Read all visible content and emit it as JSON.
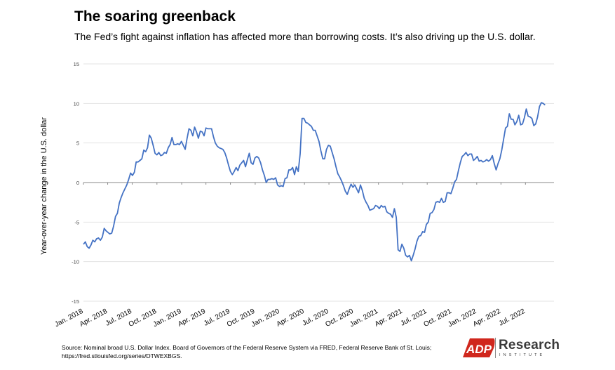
{
  "header": {
    "title": "The soaring greenback",
    "subtitle": "The Fed’s fight against inflation has affected more than borrowing costs. It’s also driving up the U.S. dollar."
  },
  "footer": {
    "source_line1": "Source:  Nominal broad U.S. Dollar Index. Board of Governors of the Federal Reserve System     via FRED, Federal Reserve Bank of St. Louis;",
    "source_line2": "https://fred.stlouisfed.org/series/DTWEXBGS.",
    "logo_icon": "adp-logo-icon",
    "logo_text": "Research",
    "logo_subtext": "INSTITUTE",
    "logo_color": "#d0271d"
  },
  "chart_data": {
    "type": "line",
    "ylabel": "Year-over-year change in the U.S. dollar",
    "xlabel": "",
    "ylim": [
      -15,
      15
    ],
    "yticks": [
      -15,
      -10,
      -5,
      0,
      5,
      10,
      15
    ],
    "xlim": [
      "2018-01-01",
      "2022-10-15"
    ],
    "xticks": [
      {
        "date": "2018-01-01",
        "label": "Jan. 2018"
      },
      {
        "date": "2018-04-01",
        "label": "Apr. 2018"
      },
      {
        "date": "2018-07-01",
        "label": "Jul. 2018"
      },
      {
        "date": "2018-10-01",
        "label": "Oct. 2018"
      },
      {
        "date": "2019-01-01",
        "label": "Jan. 2019"
      },
      {
        "date": "2019-04-01",
        "label": "Apr. 2019"
      },
      {
        "date": "2019-07-01",
        "label": "Jul. 2019"
      },
      {
        "date": "2019-10-01",
        "label": "Oct. 2019"
      },
      {
        "date": "2020-01-01",
        "label": "Jan. 2020"
      },
      {
        "date": "2020-04-01",
        "label": "Apr. 2020"
      },
      {
        "date": "2020-07-01",
        "label": "Jul. 2020"
      },
      {
        "date": "2020-10-01",
        "label": "Oct. 2020"
      },
      {
        "date": "2021-01-01",
        "label": "Jan. 2021"
      },
      {
        "date": "2021-04-01",
        "label": "Apr. 2021"
      },
      {
        "date": "2021-07-01",
        "label": "Jul. 2021"
      },
      {
        "date": "2021-10-01",
        "label": "Oct. 2021"
      },
      {
        "date": "2022-01-01",
        "label": "Jan. 2022"
      },
      {
        "date": "2022-04-01",
        "label": "Apr. 2022"
      },
      {
        "date": "2022-07-01",
        "label": "Jul. 2022"
      }
    ],
    "grid": true,
    "line_color": "#4472c4",
    "series": [
      {
        "points": [
          [
            "2018-01-01",
            -7.8
          ],
          [
            "2018-01-08",
            -7.5
          ],
          [
            "2018-01-15",
            -8.1
          ],
          [
            "2018-01-22",
            -8.3
          ],
          [
            "2018-01-29",
            -7.9
          ],
          [
            "2018-02-05",
            -7.3
          ],
          [
            "2018-02-12",
            -7.5
          ],
          [
            "2018-02-19",
            -7.1
          ],
          [
            "2018-02-26",
            -7.0
          ],
          [
            "2018-03-05",
            -7.3
          ],
          [
            "2018-03-12",
            -6.9
          ],
          [
            "2018-03-19",
            -5.8
          ],
          [
            "2018-03-26",
            -6.1
          ],
          [
            "2018-04-02",
            -6.3
          ],
          [
            "2018-04-09",
            -6.5
          ],
          [
            "2018-04-16",
            -6.4
          ],
          [
            "2018-04-23",
            -5.5
          ],
          [
            "2018-04-30",
            -4.3
          ],
          [
            "2018-05-07",
            -3.9
          ],
          [
            "2018-05-14",
            -2.6
          ],
          [
            "2018-05-21",
            -1.9
          ],
          [
            "2018-05-28",
            -1.3
          ],
          [
            "2018-06-04",
            -0.8
          ],
          [
            "2018-06-11",
            -0.3
          ],
          [
            "2018-06-18",
            0.4
          ],
          [
            "2018-06-25",
            1.2
          ],
          [
            "2018-07-02",
            0.9
          ],
          [
            "2018-07-09",
            1.3
          ],
          [
            "2018-07-16",
            2.6
          ],
          [
            "2018-07-23",
            2.6
          ],
          [
            "2018-07-30",
            2.8
          ],
          [
            "2018-08-06",
            3.0
          ],
          [
            "2018-08-13",
            4.1
          ],
          [
            "2018-08-20",
            3.9
          ],
          [
            "2018-08-27",
            4.4
          ],
          [
            "2018-09-03",
            6.0
          ],
          [
            "2018-09-10",
            5.6
          ],
          [
            "2018-09-17",
            4.7
          ],
          [
            "2018-09-24",
            3.7
          ],
          [
            "2018-10-01",
            3.5
          ],
          [
            "2018-10-08",
            3.8
          ],
          [
            "2018-10-15",
            3.4
          ],
          [
            "2018-10-22",
            3.5
          ],
          [
            "2018-10-29",
            3.8
          ],
          [
            "2018-11-05",
            3.7
          ],
          [
            "2018-11-12",
            4.4
          ],
          [
            "2018-11-19",
            4.8
          ],
          [
            "2018-11-26",
            5.7
          ],
          [
            "2018-12-03",
            4.8
          ],
          [
            "2018-12-10",
            4.8
          ],
          [
            "2018-12-17",
            4.9
          ],
          [
            "2018-12-24",
            4.8
          ],
          [
            "2018-12-31",
            5.2
          ],
          [
            "2019-01-07",
            4.7
          ],
          [
            "2019-01-14",
            4.2
          ],
          [
            "2019-01-21",
            5.6
          ],
          [
            "2019-01-28",
            6.8
          ],
          [
            "2019-02-04",
            6.6
          ],
          [
            "2019-02-11",
            5.9
          ],
          [
            "2019-02-18",
            7.0
          ],
          [
            "2019-02-25",
            6.4
          ],
          [
            "2019-03-04",
            5.6
          ],
          [
            "2019-03-11",
            6.5
          ],
          [
            "2019-03-18",
            6.4
          ],
          [
            "2019-03-25",
            5.9
          ],
          [
            "2019-04-01",
            6.9
          ],
          [
            "2019-04-08",
            6.8
          ],
          [
            "2019-04-15",
            6.8
          ],
          [
            "2019-04-22",
            6.8
          ],
          [
            "2019-04-29",
            5.8
          ],
          [
            "2019-05-06",
            5.0
          ],
          [
            "2019-05-13",
            4.6
          ],
          [
            "2019-05-20",
            4.4
          ],
          [
            "2019-05-27",
            4.3
          ],
          [
            "2019-06-03",
            4.2
          ],
          [
            "2019-06-10",
            3.8
          ],
          [
            "2019-06-17",
            3.1
          ],
          [
            "2019-06-24",
            2.2
          ],
          [
            "2019-07-01",
            1.4
          ],
          [
            "2019-07-08",
            1.0
          ],
          [
            "2019-07-15",
            1.4
          ],
          [
            "2019-07-22",
            1.9
          ],
          [
            "2019-07-29",
            1.5
          ],
          [
            "2019-08-05",
            2.2
          ],
          [
            "2019-08-12",
            2.5
          ],
          [
            "2019-08-19",
            2.8
          ],
          [
            "2019-08-26",
            2.0
          ],
          [
            "2019-09-02",
            2.9
          ],
          [
            "2019-09-09",
            3.7
          ],
          [
            "2019-09-16",
            2.5
          ],
          [
            "2019-09-23",
            2.3
          ],
          [
            "2019-09-30",
            3.1
          ],
          [
            "2019-10-07",
            3.3
          ],
          [
            "2019-10-14",
            3.1
          ],
          [
            "2019-10-21",
            2.5
          ],
          [
            "2019-10-28",
            1.6
          ],
          [
            "2019-11-04",
            0.9
          ],
          [
            "2019-11-11",
            0.0
          ],
          [
            "2019-11-18",
            0.4
          ],
          [
            "2019-11-25",
            0.4
          ],
          [
            "2019-12-02",
            0.5
          ],
          [
            "2019-12-09",
            0.4
          ],
          [
            "2019-12-16",
            0.6
          ],
          [
            "2019-12-23",
            -0.3
          ],
          [
            "2019-12-30",
            -0.5
          ],
          [
            "2020-01-06",
            -0.4
          ],
          [
            "2020-01-13",
            -0.5
          ],
          [
            "2020-01-20",
            0.5
          ],
          [
            "2020-01-27",
            0.6
          ],
          [
            "2020-02-03",
            1.6
          ],
          [
            "2020-02-10",
            1.6
          ],
          [
            "2020-02-17",
            1.9
          ],
          [
            "2020-02-24",
            1.0
          ],
          [
            "2020-03-02",
            2.0
          ],
          [
            "2020-03-09",
            1.4
          ],
          [
            "2020-03-16",
            3.6
          ],
          [
            "2020-03-23",
            8.1
          ],
          [
            "2020-03-30",
            8.1
          ],
          [
            "2020-04-06",
            7.6
          ],
          [
            "2020-04-13",
            7.5
          ],
          [
            "2020-04-20",
            7.3
          ],
          [
            "2020-04-27",
            7.1
          ],
          [
            "2020-05-04",
            6.6
          ],
          [
            "2020-05-11",
            6.6
          ],
          [
            "2020-05-18",
            5.9
          ],
          [
            "2020-05-25",
            5.2
          ],
          [
            "2020-06-01",
            4.0
          ],
          [
            "2020-06-08",
            3.0
          ],
          [
            "2020-06-15",
            3.0
          ],
          [
            "2020-06-22",
            4.2
          ],
          [
            "2020-06-29",
            4.7
          ],
          [
            "2020-07-06",
            4.6
          ],
          [
            "2020-07-13",
            3.8
          ],
          [
            "2020-07-20",
            3.0
          ],
          [
            "2020-07-27",
            2.0
          ],
          [
            "2020-08-03",
            1.1
          ],
          [
            "2020-08-10",
            0.7
          ],
          [
            "2020-08-17",
            0.2
          ],
          [
            "2020-08-24",
            -0.4
          ],
          [
            "2020-08-31",
            -1.1
          ],
          [
            "2020-09-07",
            -1.5
          ],
          [
            "2020-09-14",
            -0.8
          ],
          [
            "2020-09-21",
            -0.2
          ],
          [
            "2020-09-28",
            -0.6
          ],
          [
            "2020-10-05",
            -0.3
          ],
          [
            "2020-10-12",
            -0.8
          ],
          [
            "2020-10-19",
            -1.3
          ],
          [
            "2020-10-26",
            -0.3
          ],
          [
            "2020-11-02",
            -1.0
          ],
          [
            "2020-11-09",
            -2.0
          ],
          [
            "2020-11-16",
            -2.5
          ],
          [
            "2020-11-23",
            -2.9
          ],
          [
            "2020-11-30",
            -3.5
          ],
          [
            "2020-12-07",
            -3.4
          ],
          [
            "2020-12-14",
            -3.3
          ],
          [
            "2020-12-21",
            -2.9
          ],
          [
            "2020-12-28",
            -3.0
          ],
          [
            "2021-01-04",
            -3.3
          ],
          [
            "2021-01-11",
            -2.9
          ],
          [
            "2021-01-18",
            -3.1
          ],
          [
            "2021-01-25",
            -3.0
          ],
          [
            "2021-02-01",
            -3.7
          ],
          [
            "2021-02-08",
            -3.9
          ],
          [
            "2021-02-15",
            -4.0
          ],
          [
            "2021-02-22",
            -4.4
          ],
          [
            "2021-03-01",
            -3.3
          ],
          [
            "2021-03-08",
            -4.4
          ],
          [
            "2021-03-15",
            -8.5
          ],
          [
            "2021-03-22",
            -8.7
          ],
          [
            "2021-03-29",
            -7.8
          ],
          [
            "2021-04-05",
            -8.3
          ],
          [
            "2021-04-12",
            -9.2
          ],
          [
            "2021-04-19",
            -9.4
          ],
          [
            "2021-04-26",
            -9.2
          ],
          [
            "2021-05-03",
            -9.9
          ],
          [
            "2021-05-10",
            -9.2
          ],
          [
            "2021-05-17",
            -8.4
          ],
          [
            "2021-05-24",
            -7.4
          ],
          [
            "2021-05-31",
            -6.8
          ],
          [
            "2021-06-07",
            -6.7
          ],
          [
            "2021-06-14",
            -6.2
          ],
          [
            "2021-06-21",
            -6.3
          ],
          [
            "2021-06-28",
            -5.3
          ],
          [
            "2021-07-05",
            -5.0
          ],
          [
            "2021-07-12",
            -3.9
          ],
          [
            "2021-07-19",
            -3.8
          ],
          [
            "2021-07-26",
            -3.4
          ],
          [
            "2021-08-02",
            -2.5
          ],
          [
            "2021-08-09",
            -2.4
          ],
          [
            "2021-08-16",
            -2.5
          ],
          [
            "2021-08-23",
            -2.0
          ],
          [
            "2021-08-30",
            -2.5
          ],
          [
            "2021-09-06",
            -2.4
          ],
          [
            "2021-09-13",
            -1.3
          ],
          [
            "2021-09-20",
            -1.3
          ],
          [
            "2021-09-27",
            -1.4
          ],
          [
            "2021-10-04",
            -0.7
          ],
          [
            "2021-10-11",
            0.1
          ],
          [
            "2021-10-18",
            0.4
          ],
          [
            "2021-10-25",
            1.5
          ],
          [
            "2021-11-01",
            2.5
          ],
          [
            "2021-11-08",
            3.3
          ],
          [
            "2021-11-15",
            3.5
          ],
          [
            "2021-11-22",
            3.8
          ],
          [
            "2021-11-29",
            3.4
          ],
          [
            "2021-12-06",
            3.6
          ],
          [
            "2021-12-13",
            3.6
          ],
          [
            "2021-12-20",
            2.8
          ],
          [
            "2021-12-27",
            3.0
          ],
          [
            "2022-01-03",
            3.3
          ],
          [
            "2022-01-10",
            2.7
          ],
          [
            "2022-01-17",
            2.8
          ],
          [
            "2022-01-24",
            2.6
          ],
          [
            "2022-01-31",
            2.7
          ],
          [
            "2022-02-07",
            2.9
          ],
          [
            "2022-02-14",
            2.7
          ],
          [
            "2022-02-21",
            2.9
          ],
          [
            "2022-02-28",
            3.4
          ],
          [
            "2022-03-07",
            2.4
          ],
          [
            "2022-03-14",
            1.6
          ],
          [
            "2022-03-21",
            2.4
          ],
          [
            "2022-03-28",
            3.0
          ],
          [
            "2022-04-04",
            4.1
          ],
          [
            "2022-04-11",
            5.5
          ],
          [
            "2022-04-18",
            6.9
          ],
          [
            "2022-04-25",
            7.1
          ],
          [
            "2022-05-02",
            8.7
          ],
          [
            "2022-05-09",
            8.0
          ],
          [
            "2022-05-16",
            8.0
          ],
          [
            "2022-05-23",
            7.3
          ],
          [
            "2022-05-30",
            7.7
          ],
          [
            "2022-06-06",
            8.5
          ],
          [
            "2022-06-13",
            7.3
          ],
          [
            "2022-06-20",
            7.4
          ],
          [
            "2022-06-27",
            8.2
          ],
          [
            "2022-07-04",
            9.3
          ],
          [
            "2022-07-11",
            8.4
          ],
          [
            "2022-07-18",
            8.3
          ],
          [
            "2022-07-25",
            8.1
          ],
          [
            "2022-08-01",
            7.2
          ],
          [
            "2022-08-08",
            7.4
          ],
          [
            "2022-08-15",
            8.3
          ],
          [
            "2022-08-22",
            9.6
          ],
          [
            "2022-08-29",
            10.1
          ],
          [
            "2022-09-05",
            10.0
          ],
          [
            "2022-09-12",
            9.8
          ]
        ]
      }
    ]
  }
}
